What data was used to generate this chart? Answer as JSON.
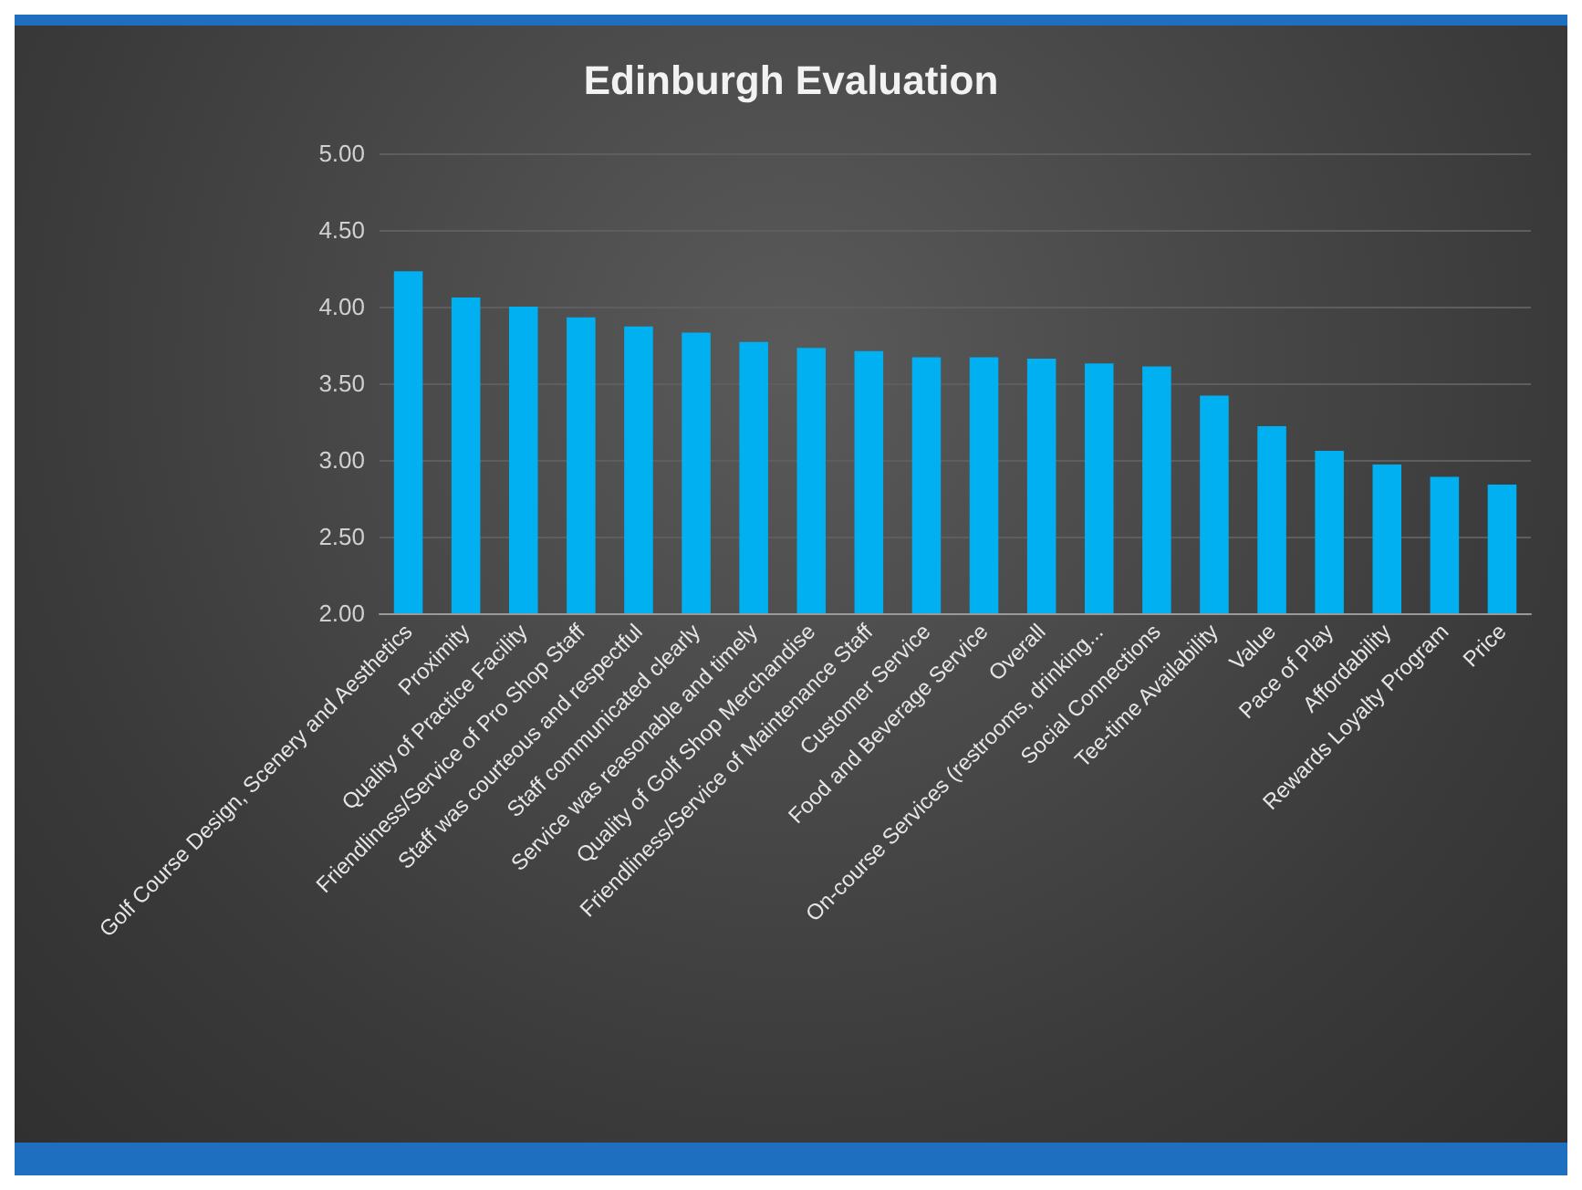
{
  "chart_data": {
    "type": "bar",
    "title": "Edinburgh Evaluation",
    "categories": [
      "Golf Course Design, Scenery and Aesthetics",
      "Proximity",
      "Quality of Practice Facility",
      "Friendliness/Service of Pro Shop Staff",
      "Staff was courteous and respectful",
      "Staff communicated clearly",
      "Service was reasonable and timely",
      "Quality of Golf Shop Merchandise",
      "Friendliness/Service of Maintenance Staff",
      "Customer Service",
      "Food and Beverage Service",
      "Overall",
      "On-course Services (restrooms, drinking...",
      "Social Connections",
      "Tee-time Availability",
      "Value",
      "Pace of Play",
      "Affordability",
      "Rewards Loyalty Program",
      "Price"
    ],
    "values": [
      4.23,
      4.06,
      4.0,
      3.93,
      3.87,
      3.83,
      3.77,
      3.73,
      3.71,
      3.67,
      3.67,
      3.66,
      3.63,
      3.61,
      3.42,
      3.22,
      3.06,
      2.97,
      2.89,
      2.84
    ],
    "color": "#00b0f0",
    "ylim": [
      2,
      5
    ],
    "yticks": [
      {
        "value": 2,
        "label": "2.00"
      },
      {
        "value": 2.5,
        "label": "2.50"
      },
      {
        "value": 3,
        "label": "3.00"
      },
      {
        "value": 3.5,
        "label": "3.50"
      },
      {
        "value": 4,
        "label": "4.00"
      },
      {
        "value": 4.5,
        "label": "4.50"
      },
      {
        "value": 5,
        "label": "5.00"
      }
    ],
    "grid": "y"
  }
}
